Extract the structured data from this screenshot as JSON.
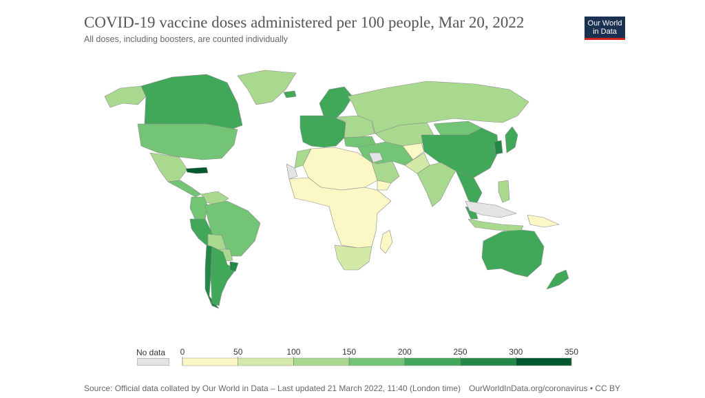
{
  "header": {
    "title": "COVID-19 vaccine doses administered per 100 people, Mar 20, 2022",
    "subtitle": "All doses, including boosters, are counted individually",
    "logo_line1": "Our World",
    "logo_line2": "in Data"
  },
  "colors": {
    "no_data": "#e4e4e4",
    "ocean": "#ffffff",
    "border": "#8a8a8a",
    "logo_bg": "#1a3152",
    "logo_accent": "#ce261e"
  },
  "legend": {
    "no_data_label": "No data",
    "ticks": [
      "0",
      "50",
      "100",
      "150",
      "200",
      "250",
      "300",
      "350"
    ],
    "bins": [
      {
        "from": 0,
        "to": 50,
        "color": "#fbf8c5"
      },
      {
        "from": 50,
        "to": 100,
        "color": "#d3e9a7"
      },
      {
        "from": 100,
        "to": 150,
        "color": "#a9d98f"
      },
      {
        "from": 150,
        "to": 200,
        "color": "#74c476"
      },
      {
        "from": 200,
        "to": 250,
        "color": "#41a85a"
      },
      {
        "from": 250,
        "to": 300,
        "color": "#238845"
      },
      {
        "from": 300,
        "to": 350,
        "color": "#00592e"
      }
    ]
  },
  "regions": [
    {
      "name": "Alaska",
      "bin": 2
    },
    {
      "name": "Canada",
      "bin": 4
    },
    {
      "name": "Greenland",
      "bin": 2
    },
    {
      "name": "United States",
      "bin": 3
    },
    {
      "name": "Mexico",
      "bin": 2
    },
    {
      "name": "Central America",
      "bin": 3
    },
    {
      "name": "Cuba",
      "bin": 6
    },
    {
      "name": "Venezuela",
      "bin": 2
    },
    {
      "name": "Colombia",
      "bin": 3
    },
    {
      "name": "Peru",
      "bin": 4
    },
    {
      "name": "Brazil",
      "bin": 3
    },
    {
      "name": "Bolivia",
      "bin": 2
    },
    {
      "name": "Paraguay",
      "bin": 2
    },
    {
      "name": "Chile",
      "bin": 5
    },
    {
      "name": "Argentina",
      "bin": 4
    },
    {
      "name": "Uruguay",
      "bin": 5
    },
    {
      "name": "Iceland",
      "bin": 4
    },
    {
      "name": "Scandinavia",
      "bin": 4
    },
    {
      "name": "Western Europe",
      "bin": 4
    },
    {
      "name": "Eastern Europe",
      "bin": 2
    },
    {
      "name": "Russia",
      "bin": 2
    },
    {
      "name": "Turkey",
      "bin": 3
    },
    {
      "name": "Middle East",
      "bin": 3
    },
    {
      "name": "Saudi Arabia",
      "bin": 2
    },
    {
      "name": "Yemen",
      "bin": 0
    },
    {
      "name": "Central Asia",
      "bin": 2
    },
    {
      "name": "Mongolia",
      "bin": 3
    },
    {
      "name": "China",
      "bin": 4
    },
    {
      "name": "Korea",
      "bin": 5
    },
    {
      "name": "Japan",
      "bin": 4
    },
    {
      "name": "Afghanistan",
      "bin": 0
    },
    {
      "name": "Pakistan",
      "bin": 1
    },
    {
      "name": "India",
      "bin": 2
    },
    {
      "name": "Southeast Asia",
      "bin": 4
    },
    {
      "name": "Malaysia",
      "bin": 4
    },
    {
      "name": "Indonesia",
      "bin": 2
    },
    {
      "name": "Philippines",
      "bin": 2
    },
    {
      "name": "Papua New Guinea",
      "bin": 0
    },
    {
      "name": "Australia",
      "bin": 4
    },
    {
      "name": "New Zealand",
      "bin": 4
    },
    {
      "name": "North Africa",
      "bin": 0
    },
    {
      "name": "Morocco",
      "bin": 2
    },
    {
      "name": "Western Sahara",
      "bin": -1
    },
    {
      "name": "Sub-Saharan Africa",
      "bin": 0
    },
    {
      "name": "Southern Africa",
      "bin": 1
    },
    {
      "name": "Madagascar",
      "bin": 0
    },
    {
      "name": "Arabian Peninsula unknown",
      "bin": -1
    },
    {
      "name": "New Guinea west",
      "bin": -1
    }
  ],
  "footer": {
    "source": "Source: Official data collated by Our World in Data – Last updated 21 March 2022, 11:40 (London time)",
    "url": "OurWorldInData.org/coronavirus • CC BY"
  }
}
